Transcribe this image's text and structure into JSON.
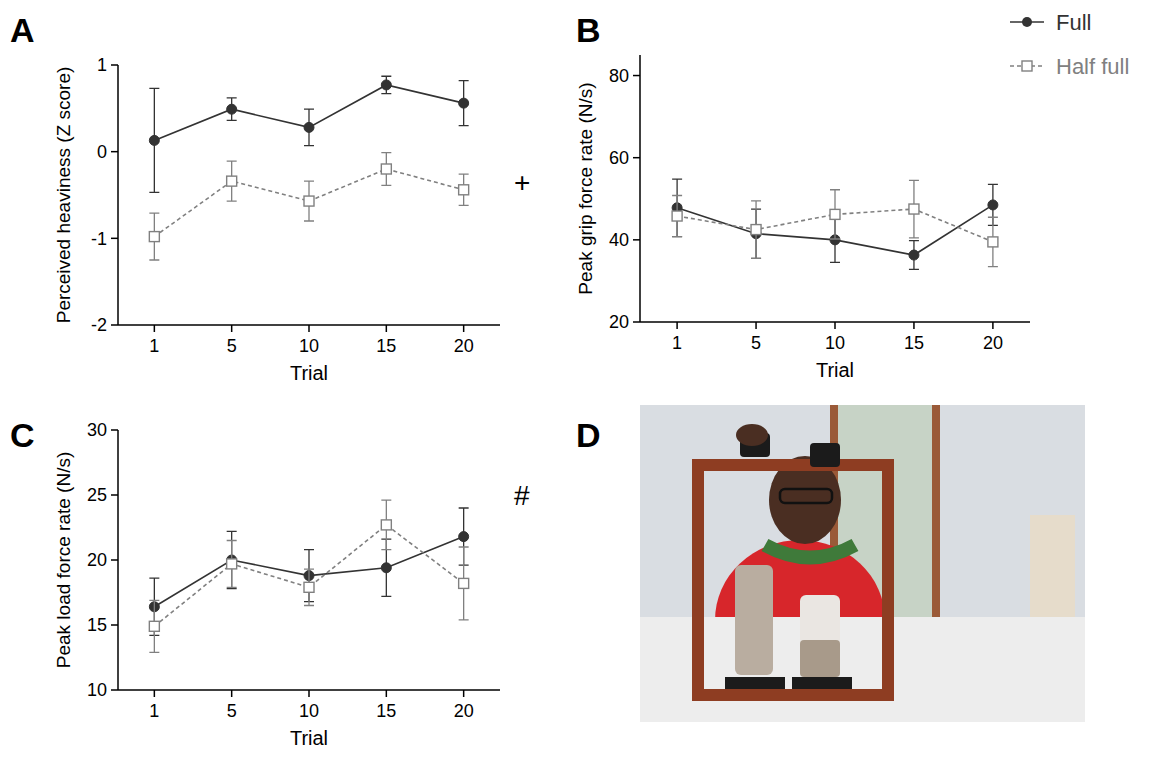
{
  "chart_data": [
    {
      "type": "line",
      "panel": "A",
      "x_label": "Trial",
      "y_label": "Perceived heaviness (Z score)",
      "categories": [
        "1",
        "5",
        "10",
        "15",
        "20"
      ],
      "ylim": [
        -2,
        1
      ],
      "yticks": [
        -2,
        -1,
        0,
        1
      ],
      "annotations": [
        {
          "text": "+"
        }
      ],
      "series": [
        {
          "name": "Full",
          "color": "#333333",
          "marker": "circle",
          "line_style": "solid",
          "values": [
            0.13,
            0.49,
            0.28,
            0.77,
            0.56
          ],
          "errors": [
            0.6,
            0.13,
            0.21,
            0.1,
            0.26
          ]
        },
        {
          "name": "Half full",
          "color": "#808080",
          "marker": "square",
          "line_style": "dashed",
          "values": [
            -0.98,
            -0.34,
            -0.57,
            -0.2,
            -0.44
          ],
          "errors": [
            0.27,
            0.23,
            0.23,
            0.19,
            0.18
          ]
        }
      ]
    },
    {
      "type": "line",
      "panel": "B",
      "x_label": "Trial",
      "y_label": "Peak grip force rate (N/s)",
      "categories": [
        "1",
        "5",
        "10",
        "15",
        "20"
      ],
      "ylim": [
        20,
        85
      ],
      "yticks": [
        20,
        40,
        60,
        80
      ],
      "legend": "top-right",
      "series": [
        {
          "name": "Full",
          "color": "#333333",
          "marker": "circle",
          "line_style": "solid",
          "values": [
            47.8,
            41.5,
            40.0,
            36.3,
            48.5
          ],
          "errors": [
            7,
            6,
            5.5,
            3.5,
            5
          ]
        },
        {
          "name": "Half full",
          "color": "#808080",
          "marker": "square",
          "line_style": "dashed",
          "values": [
            45.8,
            42.5,
            46.2,
            47.5,
            39.5
          ],
          "errors": [
            5,
            7,
            6,
            7,
            6
          ]
        }
      ]
    },
    {
      "type": "line",
      "panel": "C",
      "x_label": "Trial",
      "y_label": "Peak load force rate (N/s)",
      "categories": [
        "1",
        "5",
        "10",
        "15",
        "20"
      ],
      "ylim": [
        10,
        30
      ],
      "yticks": [
        10,
        15,
        20,
        25,
        30
      ],
      "annotations": [
        {
          "text": "#"
        }
      ],
      "series": [
        {
          "name": "Full",
          "color": "#333333",
          "marker": "circle",
          "line_style": "solid",
          "values": [
            16.4,
            20.0,
            18.8,
            19.4,
            21.8
          ],
          "errors": [
            2.2,
            2.2,
            2.0,
            2.2,
            2.2
          ]
        },
        {
          "name": "Half full",
          "color": "#808080",
          "marker": "square",
          "line_style": "dashed",
          "values": [
            14.9,
            19.7,
            17.9,
            22.7,
            18.2
          ],
          "errors": [
            2.0,
            1.8,
            1.4,
            1.9,
            2.8
          ]
        }
      ]
    }
  ],
  "photo": {
    "panel": "D"
  }
}
